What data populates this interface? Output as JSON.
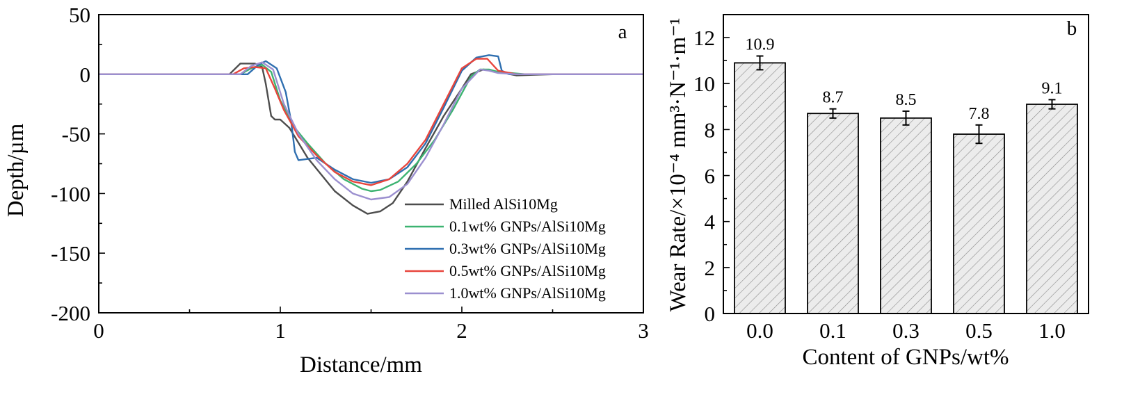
{
  "chart_data": [
    {
      "type": "line",
      "panel_label": "a",
      "xlabel": "Distance/mm",
      "ylabel": "Depth/µm",
      "xlim": [
        0,
        3
      ],
      "ylim": [
        -200,
        50
      ],
      "xticks": [
        "0",
        "1",
        "2",
        "3"
      ],
      "yticks": [
        "-200",
        "-150",
        "-100",
        "-50",
        "0",
        "50"
      ],
      "legend_position": "bottom-right",
      "series": [
        {
          "name": "Milled AlSi10Mg",
          "color": "#4d4d4d",
          "x": [
            0,
            0.5,
            0.72,
            0.78,
            0.86,
            0.9,
            0.92,
            0.95,
            0.97,
            1.0,
            1.05,
            1.15,
            1.3,
            1.4,
            1.48,
            1.55,
            1.62,
            1.7,
            1.8,
            1.9,
            2.0,
            2.05,
            2.12,
            2.2,
            2.3,
            2.5,
            3.0
          ],
          "y": [
            0,
            0,
            0,
            9,
            9,
            6,
            -8,
            -35,
            -38,
            -38,
            -45,
            -70,
            -98,
            -110,
            -117,
            -115,
            -108,
            -90,
            -62,
            -35,
            -12,
            0,
            4,
            2,
            -1,
            0,
            0
          ]
        },
        {
          "name": "0.1wt% GNPs/AlSi10Mg",
          "color": "#3cb371",
          "x": [
            0,
            0.5,
            0.78,
            0.84,
            0.9,
            0.95,
            1.0,
            1.08,
            1.15,
            1.25,
            1.35,
            1.45,
            1.5,
            1.55,
            1.65,
            1.75,
            1.85,
            1.95,
            2.05,
            2.1,
            2.15,
            2.2,
            2.35,
            3.0
          ],
          "y": [
            0,
            0,
            0,
            5,
            8,
            2,
            -22,
            -45,
            -58,
            -75,
            -88,
            -96,
            -98,
            -97,
            -90,
            -75,
            -55,
            -30,
            -2,
            4,
            4,
            2,
            0,
            0
          ]
        },
        {
          "name": "0.3wt% GNPs/AlSi10Mg",
          "color": "#2f6fb0",
          "x": [
            0,
            0.5,
            0.82,
            0.88,
            0.92,
            0.98,
            1.03,
            1.06,
            1.08,
            1.1,
            1.2,
            1.3,
            1.4,
            1.5,
            1.6,
            1.7,
            1.8,
            1.9,
            2.0,
            2.08,
            2.15,
            2.2,
            2.22,
            2.26,
            2.3,
            3.0
          ],
          "y": [
            0,
            0,
            0,
            8,
            11,
            5,
            -15,
            -40,
            -65,
            -72,
            -70,
            -80,
            -88,
            -91,
            -88,
            -78,
            -58,
            -28,
            3,
            14,
            16,
            15,
            3,
            0,
            0,
            0
          ]
        },
        {
          "name": "0.5wt% GNPs/AlSi10Mg",
          "color": "#e8453c",
          "x": [
            0,
            0.5,
            0.74,
            0.8,
            0.86,
            0.92,
            0.97,
            1.02,
            1.1,
            1.2,
            1.3,
            1.4,
            1.5,
            1.6,
            1.7,
            1.8,
            1.9,
            2.0,
            2.08,
            2.14,
            2.2,
            2.3,
            3.0
          ],
          "y": [
            0,
            0,
            0,
            5,
            6,
            5,
            -12,
            -30,
            -52,
            -68,
            -82,
            -90,
            -93,
            -88,
            -75,
            -55,
            -25,
            5,
            13,
            13,
            3,
            0,
            0
          ]
        },
        {
          "name": "1.0wt% GNPs/AlSi10Mg",
          "color": "#9b8fcf",
          "x": [
            0,
            0.5,
            0.78,
            0.84,
            0.9,
            0.96,
            1.02,
            1.1,
            1.2,
            1.3,
            1.4,
            1.5,
            1.6,
            1.7,
            1.8,
            1.9,
            2.0,
            2.1,
            2.15,
            2.2,
            2.3,
            3.0
          ],
          "y": [
            0,
            0,
            0,
            7,
            10,
            4,
            -25,
            -50,
            -72,
            -88,
            -100,
            -105,
            -103,
            -92,
            -70,
            -42,
            -12,
            4,
            3,
            1,
            0,
            0
          ]
        }
      ]
    },
    {
      "type": "bar",
      "panel_label": "b",
      "xlabel": "Content of GNPs/wt%",
      "ylabel": "Wear Rate/×10⁻⁴ mm³·N⁻¹·m⁻¹",
      "ylim": [
        0,
        13
      ],
      "yticks": [
        "0",
        "2",
        "4",
        "6",
        "8",
        "10",
        "12"
      ],
      "categories": [
        "0.0",
        "0.1",
        "0.3",
        "0.5",
        "1.0"
      ],
      "values": [
        10.9,
        8.7,
        8.5,
        7.8,
        9.1
      ],
      "labels": [
        "10.9",
        "8.7",
        "8.5",
        "7.8",
        "9.1"
      ],
      "errors": [
        0.3,
        0.2,
        0.3,
        0.4,
        0.2
      ],
      "bar_fill": "#ececec",
      "bar_hatch": "diagonal"
    }
  ]
}
